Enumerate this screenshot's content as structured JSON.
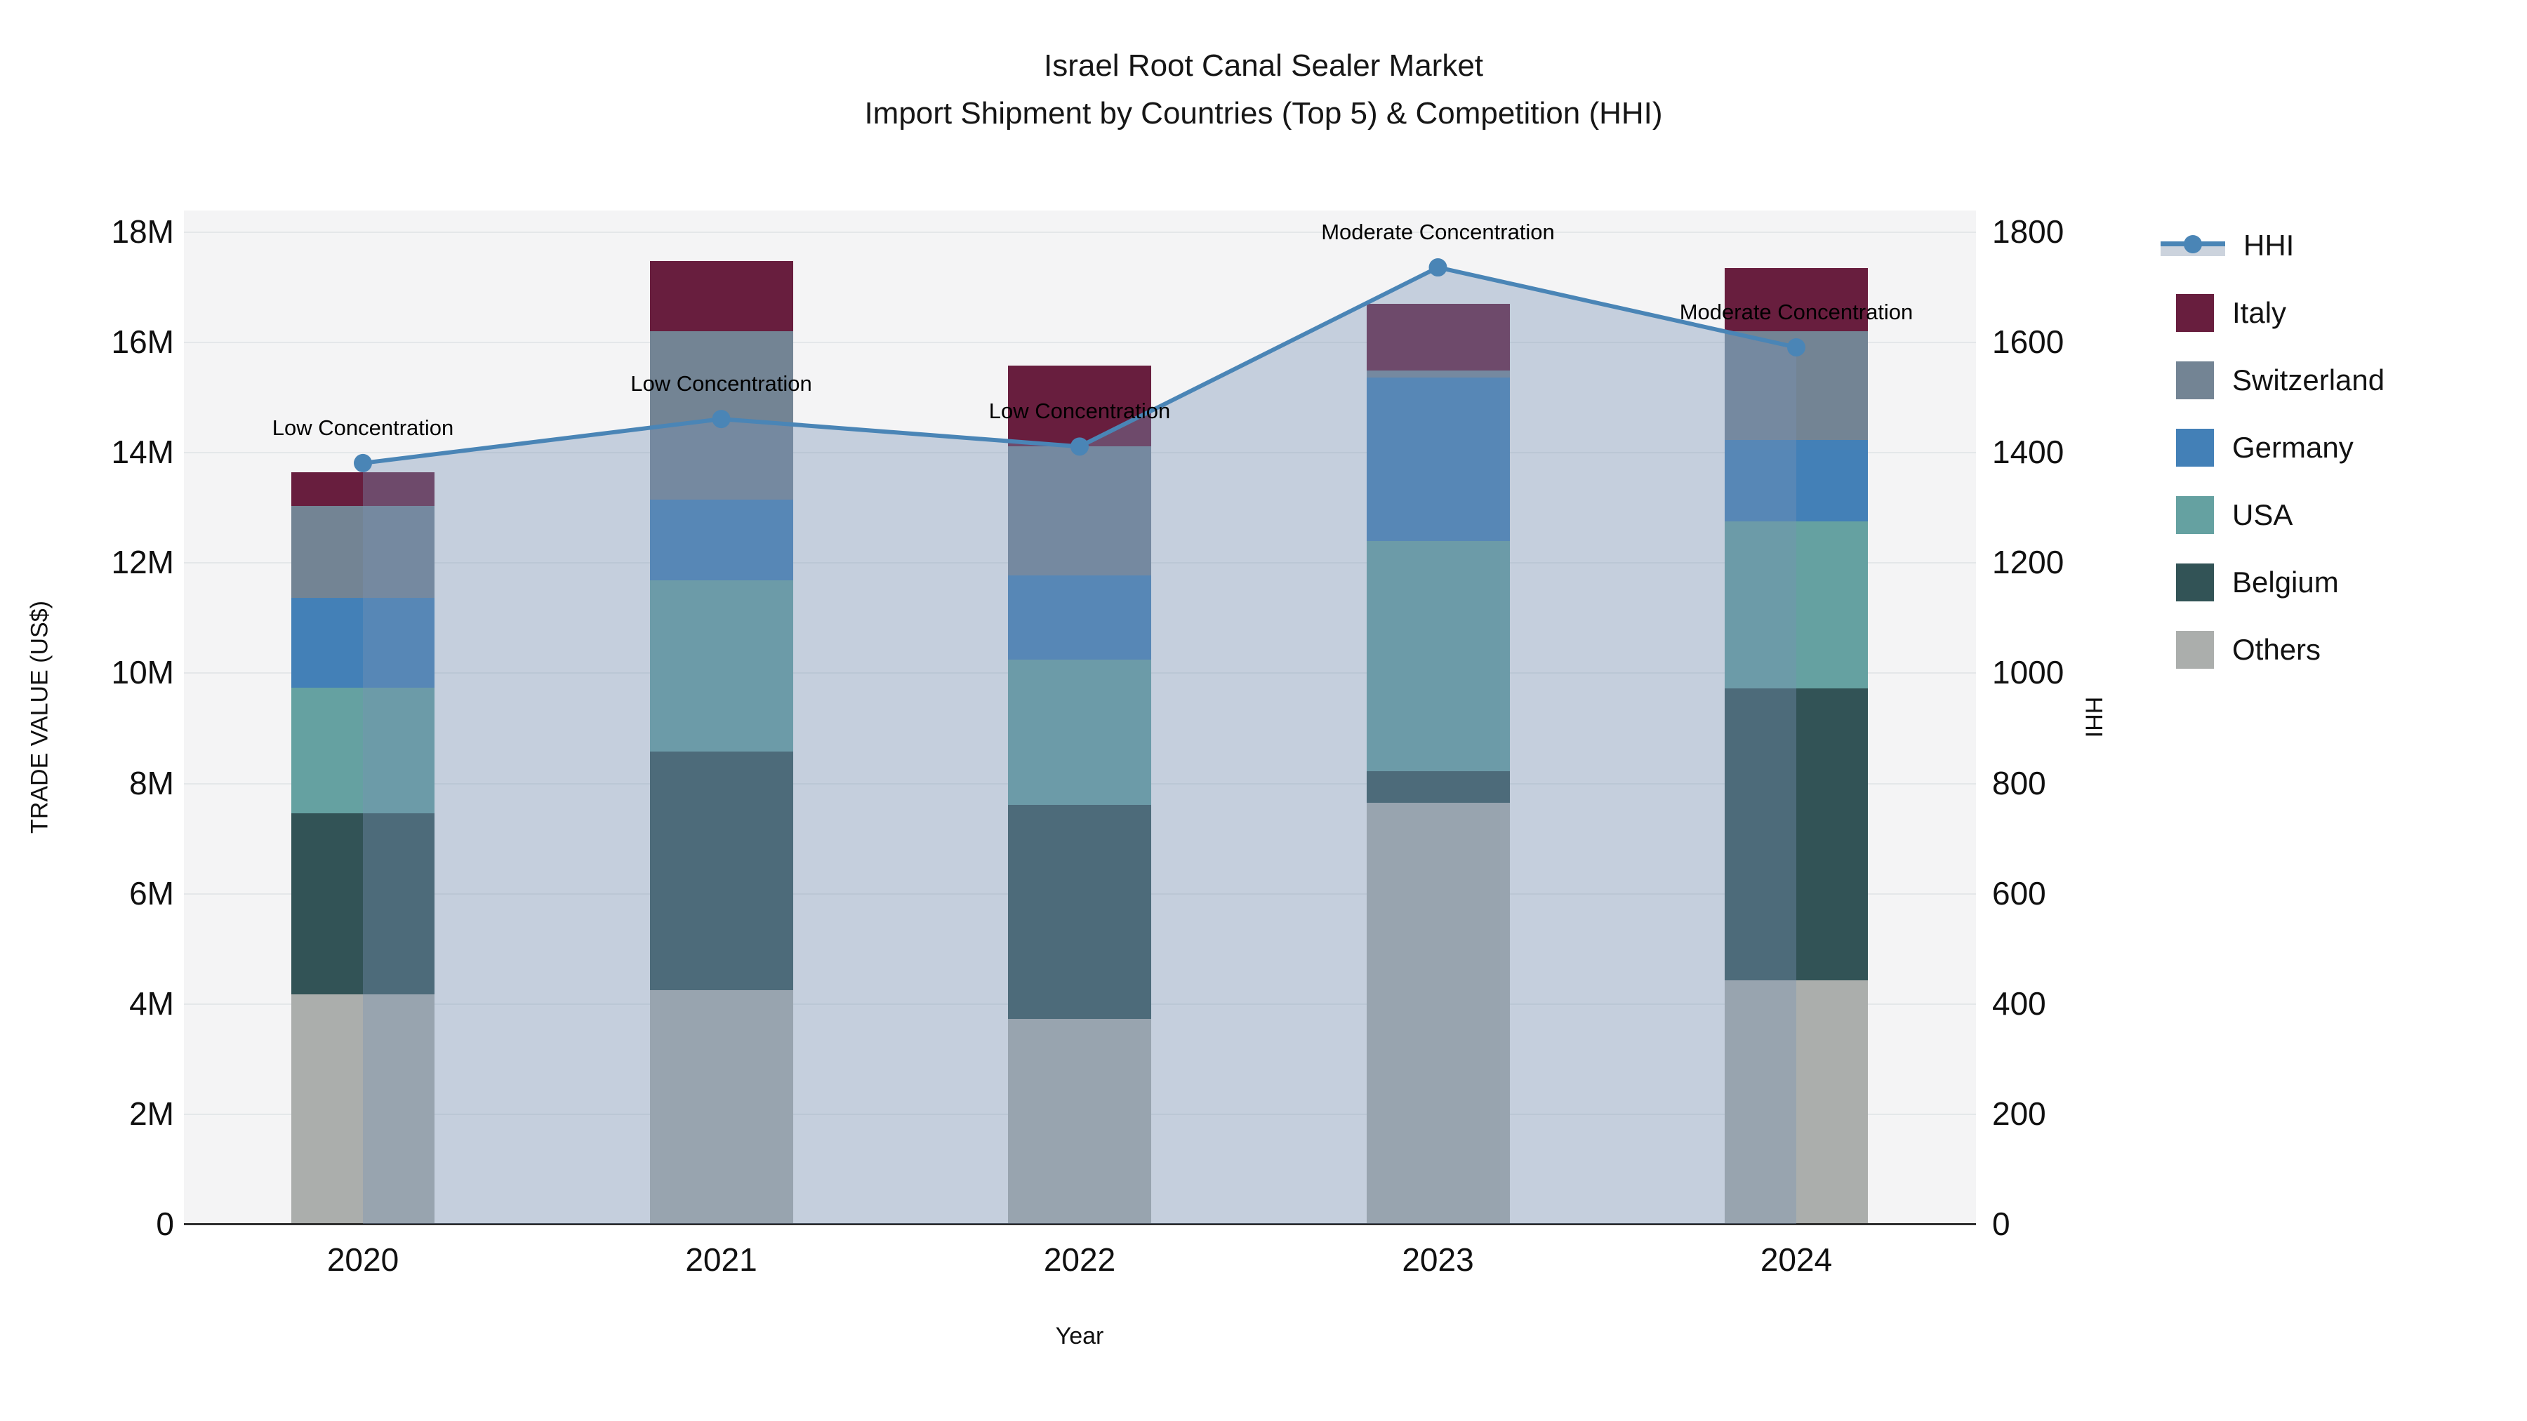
{
  "title": {
    "line1": "Israel Root Canal Sealer Market",
    "line2": "Import Shipment by Countries (Top 5) & Competition (HHI)"
  },
  "axes": {
    "left": {
      "title": "TRADE VALUE (US$)",
      "tick_labels": [
        "0",
        "2M",
        "4M",
        "6M",
        "8M",
        "10M",
        "12M",
        "14M",
        "16M",
        "18M"
      ],
      "tick_values": [
        0,
        2,
        4,
        6,
        8,
        10,
        12,
        14,
        16,
        18
      ]
    },
    "right": {
      "title": "HHI",
      "tick_labels": [
        "0",
        "200",
        "400",
        "600",
        "800",
        "1000",
        "1200",
        "1400",
        "1600",
        "1800"
      ],
      "tick_values": [
        0,
        200,
        400,
        600,
        800,
        1000,
        1200,
        1400,
        1600,
        1800
      ]
    },
    "x": {
      "title": "Year",
      "tick_labels": [
        "2020",
        "2021",
        "2022",
        "2023",
        "2024"
      ]
    }
  },
  "legend": {
    "items": [
      {
        "label": "HHI",
        "kind": "line",
        "color": "#4a85b6"
      },
      {
        "label": "Italy",
        "kind": "swatch",
        "color": "#681e3e"
      },
      {
        "label": "Switzerland",
        "kind": "swatch",
        "color": "#738494"
      },
      {
        "label": "Germany",
        "kind": "swatch",
        "color": "#4380b7"
      },
      {
        "label": "USA",
        "kind": "swatch",
        "color": "#65a1a1"
      },
      {
        "label": "Belgium",
        "kind": "swatch",
        "color": "#325356"
      },
      {
        "label": "Others",
        "kind": "swatch",
        "color": "#abaeac"
      }
    ]
  },
  "chart_data": {
    "type": "bar",
    "subtype": "stacked-bars-with-hhi-line-area",
    "title": "Israel Root Canal Sealer Market — Import Shipment by Countries (Top 5) & Competition (HHI)",
    "categories": [
      "2020",
      "2021",
      "2022",
      "2023",
      "2024"
    ],
    "xlabel": "Year",
    "ylabel_left": "TRADE VALUE (US$)",
    "ylabel_right": "HHI",
    "ylim_left_millions": [
      0,
      18.4
    ],
    "ylim_right": [
      0,
      1840
    ],
    "grid": true,
    "legend_position": "right",
    "bar_unit": "million US$",
    "series": [
      {
        "name": "Others",
        "color": "#abaeac",
        "values": [
          4.16,
          4.24,
          3.72,
          7.64,
          4.42
        ]
      },
      {
        "name": "Belgium",
        "color": "#325356",
        "values": [
          3.29,
          4.33,
          3.88,
          0.57,
          5.29
        ]
      },
      {
        "name": "USA",
        "color": "#65a1a1",
        "values": [
          2.27,
          3.1,
          2.63,
          4.17,
          3.03
        ]
      },
      {
        "name": "Germany",
        "color": "#4380b7",
        "values": [
          1.63,
          1.47,
          1.53,
          2.97,
          1.48
        ]
      },
      {
        "name": "Switzerland",
        "color": "#738494",
        "values": [
          1.67,
          3.05,
          2.35,
          0.13,
          1.97
        ]
      },
      {
        "name": "Italy",
        "color": "#681e3e",
        "values": [
          0.61,
          1.27,
          1.46,
          1.21,
          1.15
        ]
      }
    ],
    "stack_order": "bottom-to-top",
    "totals_millions": [
      13.63,
      17.46,
      15.57,
      16.69,
      17.34
    ],
    "hhi_line": {
      "name": "HHI",
      "color": "#4a85b6",
      "area_fill": "rgba(122,146,182,0.38)",
      "values": [
        1380,
        1460,
        1410,
        1735,
        1590
      ]
    },
    "annotations": [
      {
        "category": "2020",
        "text": "Low Concentration"
      },
      {
        "category": "2021",
        "text": "Low Concentration"
      },
      {
        "category": "2022",
        "text": "Low Concentration"
      },
      {
        "category": "2023",
        "text": "Moderate Concentration"
      },
      {
        "category": "2024",
        "text": "Moderate Concentration"
      }
    ]
  }
}
